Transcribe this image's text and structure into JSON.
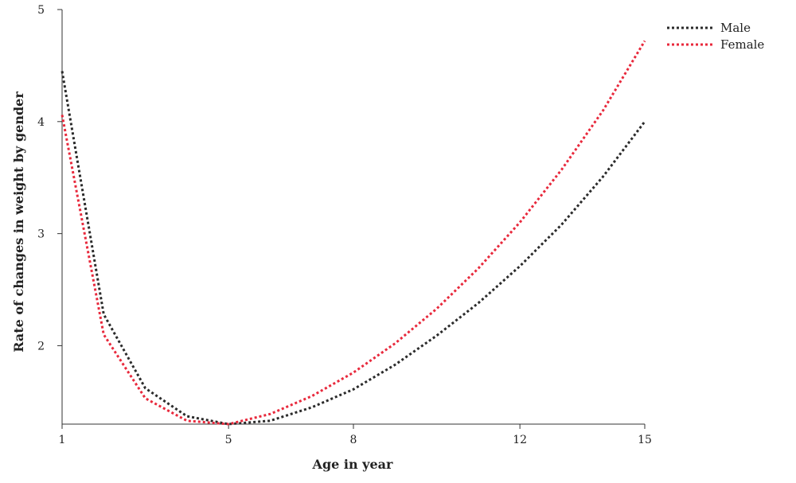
{
  "chart_data": {
    "type": "line",
    "title": "",
    "xlabel": "Age in year",
    "ylabel": "Rate of changes in weight by gender",
    "x_ticks": [
      1,
      5,
      8,
      12,
      15
    ],
    "y_ticks": [
      2,
      3,
      4,
      5
    ],
    "xlim": [
      1,
      15
    ],
    "ylim": [
      1.3,
      5
    ],
    "grid": false,
    "legend_position": "top-right",
    "x": [
      1,
      2,
      3,
      4,
      5,
      6,
      7,
      8,
      9,
      10,
      11,
      12,
      13,
      14,
      15
    ],
    "series": [
      {
        "name": "Male",
        "color": "#2b2b2b",
        "values": [
          4.45,
          2.28,
          1.62,
          1.37,
          1.3,
          1.33,
          1.45,
          1.61,
          1.83,
          2.09,
          2.38,
          2.71,
          3.08,
          3.51,
          4.0
        ]
      },
      {
        "name": "Female",
        "color": "#e8293c",
        "values": [
          4.06,
          2.1,
          1.53,
          1.33,
          1.3,
          1.39,
          1.55,
          1.76,
          2.02,
          2.33,
          2.69,
          3.1,
          3.57,
          4.1,
          4.72
        ]
      }
    ]
  }
}
